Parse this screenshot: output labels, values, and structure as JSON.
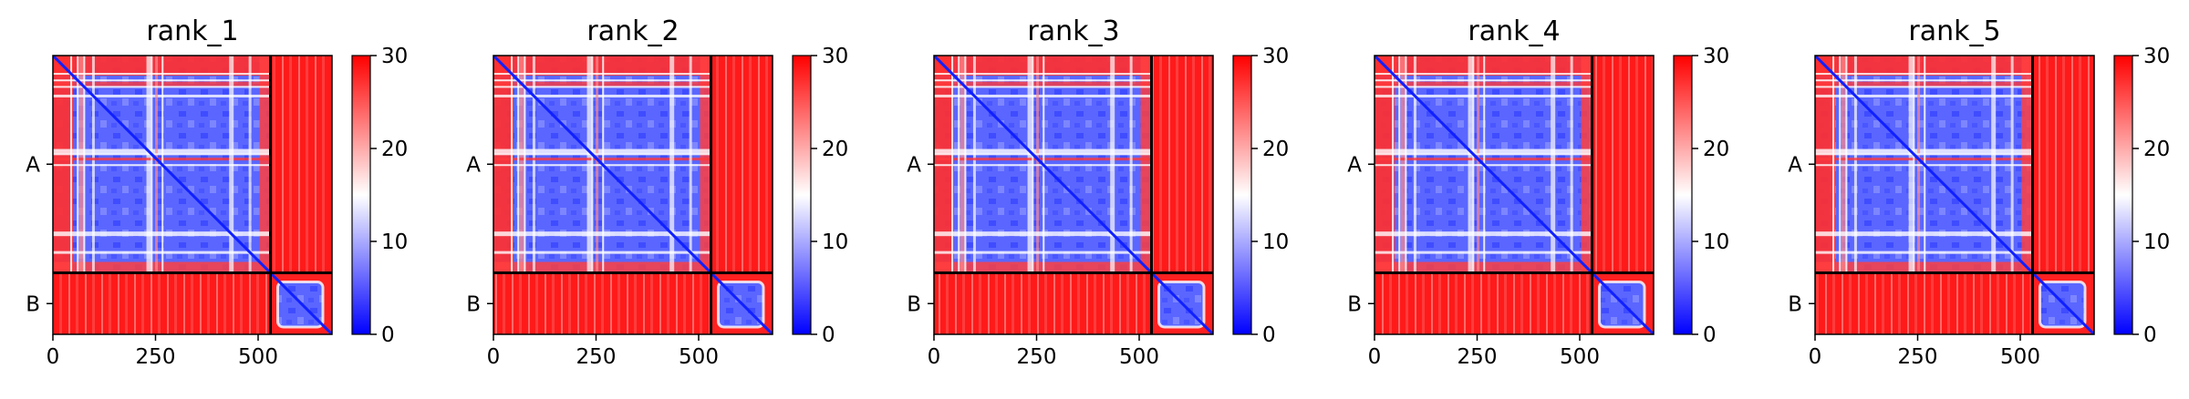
{
  "chart_data": {
    "type": "heatmap",
    "colormap": {
      "low": "#0000ff",
      "mid": "#ffffff",
      "high": "#ff0000",
      "range": [
        0,
        30
      ]
    },
    "colorbar_ticks": [
      0,
      10,
      20,
      30
    ],
    "x_ticks": [
      0,
      250,
      500
    ],
    "x_range": [
      0,
      680
    ],
    "chains": [
      {
        "label": "A",
        "start": 0,
        "end": 530
      },
      {
        "label": "B",
        "start": 530,
        "end": 680
      }
    ],
    "panels": [
      {
        "title": "rank_1"
      },
      {
        "title": "rank_2"
      },
      {
        "title": "rank_3"
      },
      {
        "title": "rank_4"
      },
      {
        "title": "rank_5"
      }
    ]
  }
}
